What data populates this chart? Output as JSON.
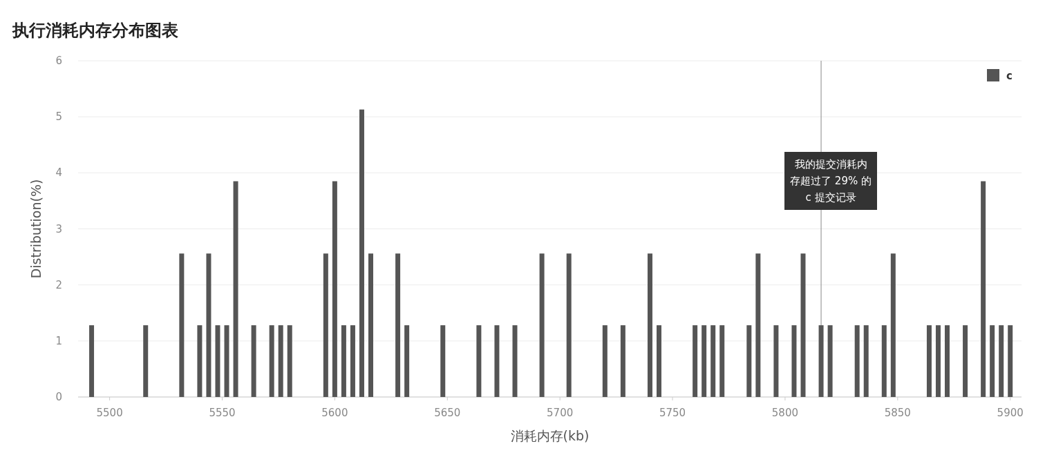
{
  "chart_data": {
    "type": "bar",
    "title": "执行消耗内存分布图表",
    "xlabel": "消耗内存(kb)",
    "ylabel": "Distribution(%)",
    "x": [
      5492,
      5516,
      5532,
      5540,
      5544,
      5548,
      5552,
      5556,
      5564,
      5572,
      5576,
      5580,
      5596,
      5600,
      5604,
      5608,
      5612,
      5616,
      5628,
      5632,
      5648,
      5664,
      5672,
      5680,
      5692,
      5704,
      5720,
      5728,
      5740,
      5744,
      5760,
      5764,
      5768,
      5772,
      5784,
      5788,
      5796,
      5804,
      5808,
      5816,
      5820,
      5832,
      5836,
      5844,
      5848,
      5864,
      5868,
      5872,
      5880,
      5888,
      5892,
      5896,
      5900
    ],
    "series": [
      {
        "name": "c",
        "color": "#555555",
        "values": [
          1.28,
          1.28,
          2.56,
          1.28,
          2.56,
          1.28,
          1.28,
          3.85,
          1.28,
          1.28,
          1.28,
          1.28,
          2.56,
          3.85,
          1.28,
          1.28,
          5.13,
          2.56,
          2.56,
          1.28,
          1.28,
          1.28,
          1.28,
          1.28,
          2.56,
          2.56,
          1.28,
          1.28,
          2.56,
          1.28,
          1.28,
          1.28,
          1.28,
          1.28,
          1.28,
          2.56,
          1.28,
          1.28,
          2.56,
          1.28,
          1.28,
          1.28,
          1.28,
          1.28,
          2.56,
          1.28,
          1.28,
          1.28,
          1.28,
          3.85,
          1.28,
          1.28,
          1.28
        ]
      }
    ],
    "xlim": [
      5486,
      5905
    ],
    "ylim": [
      0,
      6
    ],
    "xticks": [
      5500,
      5550,
      5600,
      5650,
      5700,
      5750,
      5800,
      5850,
      5900
    ],
    "yticks": [
      0,
      1,
      2,
      3,
      4,
      5,
      6
    ],
    "grid": "y",
    "legend": "top right",
    "ref_lines": [
      {
        "axis": "x",
        "value": 5816,
        "label": "我的提交消耗内存超过了 29% 的 c 提交记录",
        "color": "#888888"
      }
    ]
  }
}
